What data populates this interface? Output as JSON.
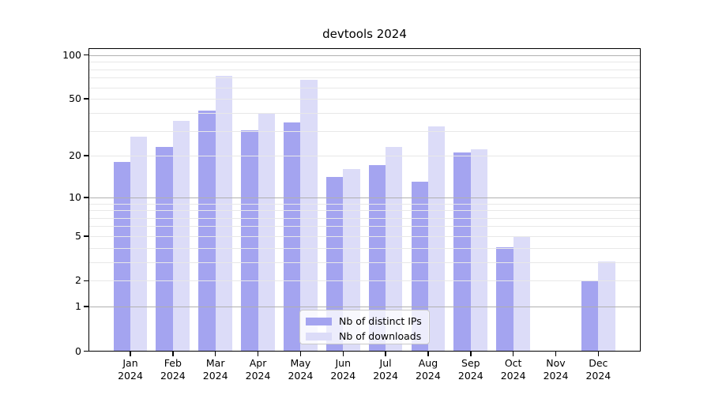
{
  "chart_data": {
    "type": "bar",
    "title": "devtools 2024",
    "categories": [
      "Jan",
      "Feb",
      "Mar",
      "Apr",
      "May",
      "Jun",
      "Jul",
      "Aug",
      "Sep",
      "Oct",
      "Nov",
      "Dec"
    ],
    "category_year": "2024",
    "series": [
      {
        "name": "Nb of distinct IPs",
        "color": "#a4a4f0",
        "values": [
          18,
          23,
          41,
          30,
          34,
          14,
          17,
          13,
          21,
          4,
          0,
          2
        ]
      },
      {
        "name": "Nb of downloads",
        "color": "#dcdcf8",
        "values": [
          27,
          35,
          72,
          39,
          67,
          16,
          23,
          32,
          22,
          5,
          0,
          3
        ]
      }
    ],
    "yscale": "log1p",
    "ylim": [
      0,
      110
    ],
    "yticks": [
      0,
      1,
      2,
      5,
      10,
      20,
      50,
      100
    ],
    "major_gridlines": [
      1,
      10,
      100
    ],
    "minor_gridlines": [
      2,
      3,
      4,
      5,
      6,
      7,
      8,
      9,
      20,
      30,
      40,
      50,
      60,
      70,
      80,
      90
    ],
    "grid": true,
    "legend_position": "bottom-center",
    "colors": {
      "major_grid": "#b0b0b0",
      "minor_grid": "#e8e8e8",
      "spine": "#000000",
      "background": "#ffffff"
    }
  }
}
